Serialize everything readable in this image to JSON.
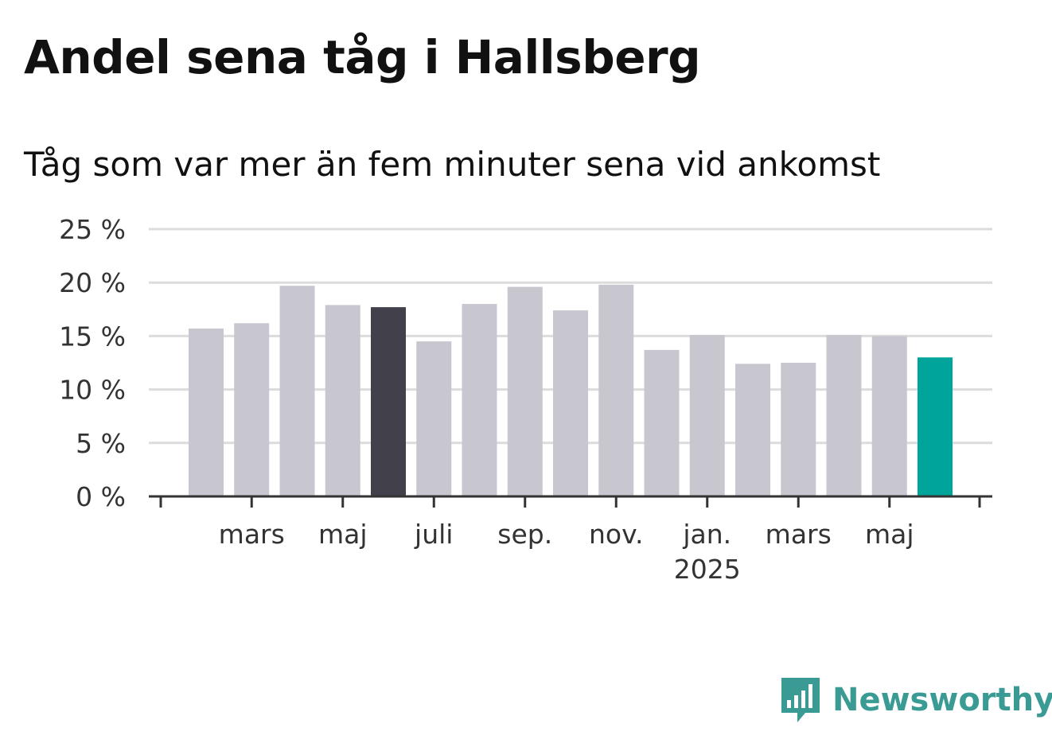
{
  "chart_data": {
    "type": "bar",
    "title": "Andel sena tåg i Hallsberg",
    "subtitle": "Tåg som var mer än fem minuter sena vid ankomst",
    "xlabel": "",
    "ylabel": "",
    "ylim": [
      0,
      25
    ],
    "y_ticks": [
      "0 %",
      "5 %",
      "10 %",
      "15 %",
      "20 %",
      "25 %"
    ],
    "y_tick_values": [
      0,
      5,
      10,
      15,
      20,
      25
    ],
    "grid": true,
    "categories": [
      "2024-02",
      "2024-03",
      "2024-04",
      "2024-05",
      "2024-06",
      "2024-07",
      "2024-08",
      "2024-09",
      "2024-10",
      "2024-11",
      "2024-12",
      "2025-01",
      "2025-02",
      "2025-03",
      "2025-04",
      "2025-05",
      "2025-06"
    ],
    "values": [
      15.7,
      16.2,
      19.7,
      17.9,
      17.7,
      14.5,
      18.0,
      19.6,
      17.4,
      19.8,
      13.7,
      15.1,
      12.4,
      12.5,
      15.1,
      15.0,
      13.0
    ],
    "x_tick_labels": [
      {
        "category": "2024-03",
        "label": "mars",
        "sub": ""
      },
      {
        "category": "2024-05",
        "label": "maj",
        "sub": ""
      },
      {
        "category": "2024-07",
        "label": "juli",
        "sub": ""
      },
      {
        "category": "2024-09",
        "label": "sep.",
        "sub": ""
      },
      {
        "category": "2024-11",
        "label": "nov.",
        "sub": ""
      },
      {
        "category": "2025-01",
        "label": "jan.",
        "sub": "2025"
      },
      {
        "category": "2025-03",
        "label": "mars",
        "sub": ""
      },
      {
        "category": "2025-05",
        "label": "maj",
        "sub": ""
      }
    ],
    "highlighted": {
      "2024-06": "dark",
      "2025-06": "accent"
    },
    "colors": {
      "default_bar": "#c8c7d0",
      "dark_bar": "#42404b",
      "accent_bar": "#00a49a",
      "grid": "#dcdcdc",
      "axis": "#333333"
    }
  },
  "branding": {
    "logo_text": "Newsworthy",
    "logo_color": "#3a9a94"
  }
}
